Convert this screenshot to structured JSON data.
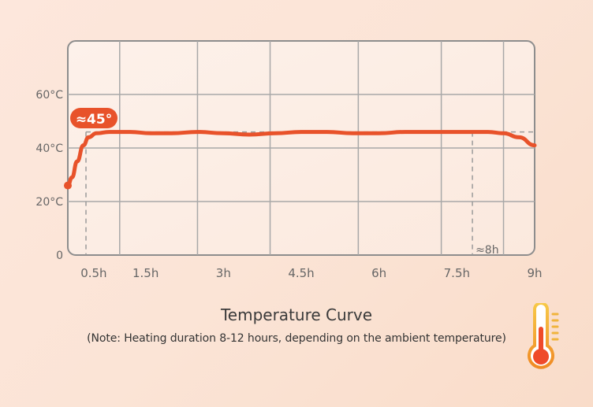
{
  "chart_data": {
    "type": "line",
    "title": "Temperature Curve",
    "subtitle": "(Note: Heating duration 8-12 hours, depending on the ambient temperature)",
    "x_ticks": [
      "0.5h",
      "1.5h",
      "3h",
      "4.5h",
      "6h",
      "7.5h",
      "9h"
    ],
    "y_ticks": [
      "0",
      "20°C",
      "40°C",
      "60°C"
    ],
    "x_unit": "hours",
    "y_unit": "°C",
    "xlim": [
      0,
      9
    ],
    "ylim": [
      0,
      80
    ],
    "grid": true,
    "series": [
      {
        "color": "#e8522a",
        "x": [
          0,
          0.08,
          0.18,
          0.3,
          0.4,
          0.55,
          0.8,
          1.2,
          1.6,
          2.0,
          2.5,
          3.0,
          3.5,
          4.0,
          4.5,
          5.0,
          5.5,
          6.0,
          6.5,
          7.0,
          7.5,
          7.8,
          8.1,
          8.4,
          8.7,
          9.0
        ],
        "y": [
          26,
          29,
          35,
          41,
          44,
          45.5,
          46,
          46,
          45.5,
          45.5,
          46,
          45.5,
          45,
          45.5,
          46,
          46,
          45.5,
          45.5,
          46,
          46,
          46,
          46,
          46,
          45.5,
          44,
          41
        ]
      }
    ],
    "annotations": [
      {
        "text": "≈45°",
        "x": 0.35,
        "y": 45,
        "color": "#e8522a"
      },
      {
        "text": "≈8h",
        "x": 7.8,
        "y": 0,
        "color": "#666"
      }
    ],
    "reference_lines": {
      "y": 46,
      "x_start": 0.35,
      "x_end": 7.8
    }
  }
}
